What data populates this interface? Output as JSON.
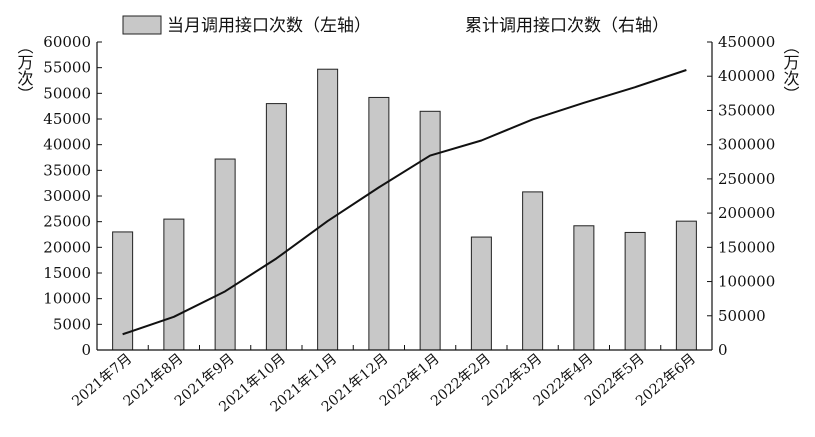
{
  "chart_data": {
    "type": "bar",
    "categories": [
      "2021年7月",
      "2021年8月",
      "2021年9月",
      "2021年10月",
      "2021年11月",
      "2021年12月",
      "2022年1月",
      "2022年2月",
      "2022年3月",
      "2022年4月",
      "2022年5月",
      "2022年6月"
    ],
    "series": [
      {
        "name": "当月调用接口次数（左轴）",
        "type": "bar",
        "axis": "left",
        "values": [
          23000,
          25500,
          37200,
          48000,
          54700,
          49200,
          46500,
          22000,
          30800,
          24200,
          22900,
          25100
        ]
      },
      {
        "name": "累计调用接口次数（右轴）",
        "type": "line",
        "axis": "right",
        "values": [
          23000,
          48500,
          85700,
          133700,
          188400,
          237600,
          284100,
          306100,
          336900,
          361100,
          384000,
          409100
        ]
      }
    ],
    "y_left": {
      "label": "（万次）",
      "range": [
        0,
        60000
      ],
      "ticks": [
        "0",
        "5000",
        "10000",
        "15000",
        "20000",
        "25000",
        "30000",
        "35000",
        "40000",
        "45000",
        "50000",
        "55000",
        "60000"
      ]
    },
    "y_right": {
      "label": "（万次）",
      "range": [
        0,
        450000
      ],
      "ticks": [
        "0",
        "50000",
        "100000",
        "150000",
        "200000",
        "250000",
        "300000",
        "350000",
        "400000",
        "450000"
      ]
    },
    "legend_position": "top",
    "grid": false,
    "colors": {
      "bar_fill": "#c8c8c8",
      "bar_stroke": "#222222",
      "line": "#111111",
      "axis": "#111111"
    }
  }
}
